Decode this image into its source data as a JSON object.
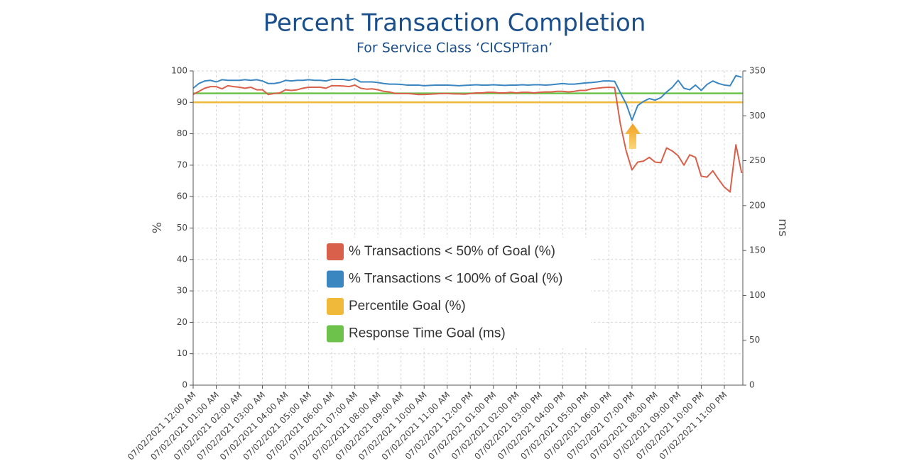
{
  "chart_data": {
    "type": "line",
    "title": "Percent Transaction Completion",
    "subtitle": "For Service Class ‘CICSPTran’",
    "y_label": "%",
    "y2_label": "ms",
    "x": [
      0,
      0.25,
      0.5,
      0.75,
      1,
      1.25,
      1.5,
      1.75,
      2,
      2.25,
      2.5,
      2.75,
      3,
      3.25,
      3.5,
      3.75,
      4,
      4.25,
      4.5,
      4.75,
      5,
      5.25,
      5.5,
      5.75,
      6,
      6.25,
      6.5,
      6.75,
      7,
      7.25,
      7.5,
      7.75,
      8,
      8.25,
      8.5,
      8.75,
      9,
      9.25,
      9.5,
      9.75,
      10,
      10.25,
      10.5,
      10.75,
      11,
      11.25,
      11.5,
      11.75,
      12,
      12.25,
      12.5,
      12.75,
      13,
      13.25,
      13.5,
      13.75,
      14,
      14.25,
      14.5,
      14.75,
      15,
      15.25,
      15.5,
      15.75,
      16,
      16.25,
      16.5,
      16.75,
      17,
      17.25,
      17.5,
      17.75,
      18,
      18.25,
      18.5,
      18.75,
      19,
      19.25,
      19.5,
      19.75,
      20,
      20.25,
      20.5,
      20.75,
      21,
      21.25,
      21.5,
      21.75,
      22,
      22.25,
      22.5,
      22.75,
      23,
      23.25,
      23.5,
      23.75
    ],
    "series": [
      {
        "name": "% Transactions < 50% of Goal (%)",
        "color": "#d9604a",
        "values": [
          92.5,
          93.5,
          94.5,
          95,
          95,
          94.3,
          95.3,
          95,
          94.8,
          94.5,
          94.8,
          94,
          94,
          92.5,
          92.8,
          93,
          94,
          93.8,
          94,
          94.5,
          94.8,
          94.8,
          94.8,
          94.5,
          95.3,
          95.3,
          95.2,
          95,
          95.5,
          94.5,
          94.2,
          94.3,
          94,
          93.5,
          93.3,
          92.8,
          92.8,
          92.8,
          92.7,
          92.5,
          92.5,
          92.6,
          92.7,
          92.8,
          92.8,
          92.7,
          92.7,
          92.6,
          92.8,
          93,
          93,
          93.2,
          93.2,
          93,
          93,
          93.2,
          93,
          93.2,
          93.2,
          93,
          93.2,
          93.3,
          93.3,
          93.5,
          93.5,
          93.3,
          93.5,
          93.8,
          93.8,
          94.3,
          94.5,
          94.7,
          94.8,
          94.7,
          83,
          74.5,
          68.5,
          71,
          71.3,
          72.5,
          71,
          70.8,
          75.5,
          74.5,
          73,
          70,
          73.3,
          72.5,
          66.5,
          66.2,
          68.2,
          65.5,
          63,
          61.5,
          76.5,
          67.5
        ]
      },
      {
        "name": "% Transactions < 100% of Goal (%)",
        "color": "#3a86c1",
        "values": [
          94.5,
          96,
          96.8,
          97,
          96.5,
          97.2,
          97,
          97,
          97,
          97.2,
          97,
          97.2,
          96.8,
          96,
          96,
          96.3,
          97,
          96.8,
          97,
          97,
          97.2,
          97,
          97,
          96.8,
          97.3,
          97.3,
          97.3,
          97,
          97.5,
          96.5,
          96.5,
          96.5,
          96.3,
          96,
          95.8,
          95.8,
          95.7,
          95.5,
          95.5,
          95.5,
          95.3,
          95.4,
          95.5,
          95.5,
          95.5,
          95.4,
          95.3,
          95.4,
          95.5,
          95.6,
          95.5,
          95.5,
          95.6,
          95.5,
          95.4,
          95.5,
          95.5,
          95.6,
          95.5,
          95.6,
          95.6,
          95.5,
          95.6,
          95.8,
          96,
          95.8,
          95.8,
          96,
          96.2,
          96.3,
          96.5,
          96.8,
          96.8,
          96.7,
          93,
          89.5,
          84.3,
          89,
          90.3,
          91.2,
          90.7,
          91.5,
          93.3,
          94.8,
          97,
          94.5,
          94,
          95.5,
          93.8,
          95.7,
          96.8,
          96,
          95.5,
          95.3,
          98.5,
          98
        ]
      }
    ],
    "hlines": [
      {
        "name": "Percentile Goal (%)",
        "color": "#f0b93a",
        "value": 90
      },
      {
        "name": "Response Time Goal (ms)",
        "color": "#6cc24a",
        "value": 325,
        "axis": "y2"
      }
    ],
    "xlim": [
      0,
      23.8
    ],
    "xticks": [
      {
        "value": 0,
        "label": "07/02/2021 12:00 AM"
      },
      {
        "value": 1,
        "label": "07/02/2021 01:00 AM"
      },
      {
        "value": 2,
        "label": "07/02/2021 02:00 AM"
      },
      {
        "value": 3,
        "label": "07/02/2021 03:00 AM"
      },
      {
        "value": 4,
        "label": "07/02/2021 04:00 AM"
      },
      {
        "value": 5,
        "label": "07/02/2021 05:00 AM"
      },
      {
        "value": 6,
        "label": "07/02/2021 06:00 AM"
      },
      {
        "value": 7,
        "label": "07/02/2021 07:00 AM"
      },
      {
        "value": 8,
        "label": "07/02/2021 08:00 AM"
      },
      {
        "value": 9,
        "label": "07/02/2021 09:00 AM"
      },
      {
        "value": 10,
        "label": "07/02/2021 10:00 AM"
      },
      {
        "value": 11,
        "label": "07/02/2021 11:00 AM"
      },
      {
        "value": 12,
        "label": "07/02/2021 12:00 PM"
      },
      {
        "value": 13,
        "label": "07/02/2021 01:00 PM"
      },
      {
        "value": 14,
        "label": "07/02/2021 02:00 PM"
      },
      {
        "value": 15,
        "label": "07/02/2021 03:00 PM"
      },
      {
        "value": 16,
        "label": "07/02/2021 04:00 PM"
      },
      {
        "value": 17,
        "label": "07/02/2021 05:00 PM"
      },
      {
        "value": 18,
        "label": "07/02/2021 06:00 PM"
      },
      {
        "value": 19,
        "label": "07/02/2021 07:00 PM"
      },
      {
        "value": 20,
        "label": "07/02/2021 08:00 PM"
      },
      {
        "value": 21,
        "label": "07/02/2021 09:00 PM"
      },
      {
        "value": 22,
        "label": "07/02/2021 10:00 PM"
      },
      {
        "value": 23,
        "label": "07/02/2021 11:00 PM"
      }
    ],
    "ylim": [
      0,
      100
    ],
    "yticks": [
      0,
      10,
      20,
      30,
      40,
      50,
      60,
      70,
      80,
      90,
      100
    ],
    "y2lim": [
      0,
      350
    ],
    "y2ticks": [
      0,
      50,
      100,
      150,
      200,
      250,
      300,
      350
    ],
    "grid": true
  }
}
